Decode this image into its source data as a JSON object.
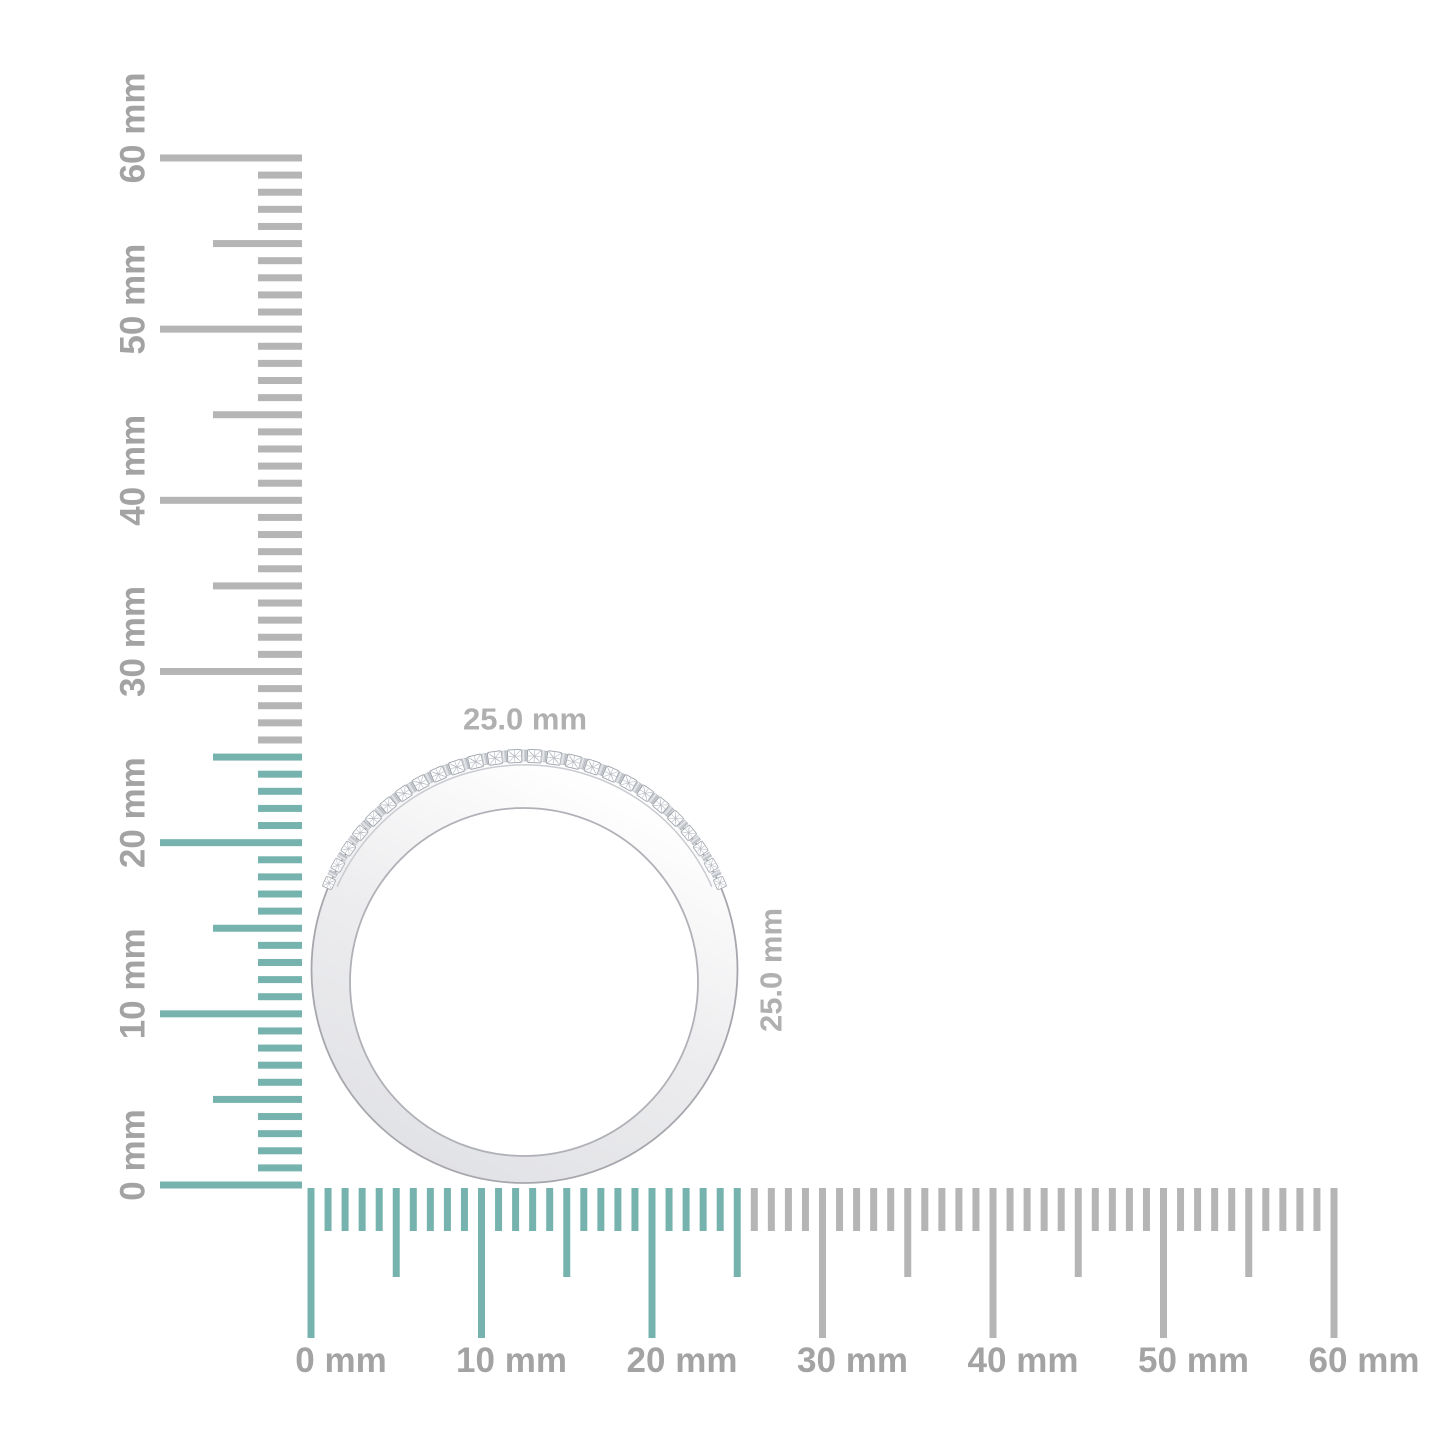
{
  "colors": {
    "accent_teal": "#77b3ae",
    "tick_gray": "#b5b5b5",
    "ruler_label_gray": "#a3a3a3",
    "dimension_label_gray": "#b0b0b0",
    "metal_light": "#ffffff",
    "metal_mid": "#ededef",
    "metal_dark": "#dfe0e4",
    "metal_outline": "#a6a7ad"
  },
  "rulers": {
    "unit": "mm",
    "highlight_until_mm": 25,
    "vertical": {
      "labels": [
        "0 mm",
        "10 mm",
        "20 mm",
        "30 mm",
        "40 mm",
        "50 mm",
        "60 mm"
      ]
    },
    "horizontal": {
      "labels": [
        "0 mm",
        "10 mm",
        "20 mm",
        "30 mm",
        "40 mm",
        "50 mm",
        "60 mm"
      ]
    }
  },
  "measure": {
    "width_label": "25.0 mm",
    "height_label": "25.0 mm"
  }
}
